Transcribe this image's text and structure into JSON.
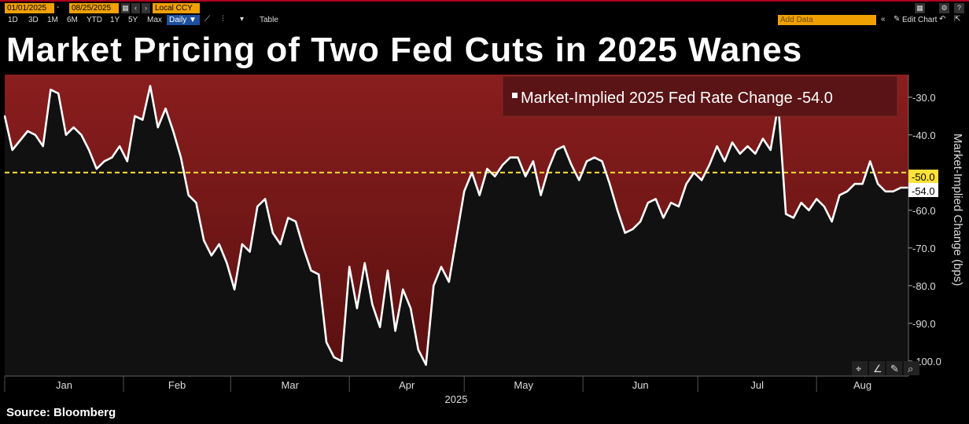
{
  "toolbar": {
    "start_date": "01/01/2025",
    "end_date": "08/25/2025",
    "currency": "Local CCY",
    "periods": [
      "1D",
      "3D",
      "1M",
      "6M",
      "YTD",
      "1Y",
      "5Y",
      "Max"
    ],
    "frequency": "Daily ▼",
    "table_label": "Table",
    "add_data_label": "Add Data",
    "edit_chart_label": "Edit Chart"
  },
  "title": "Market Pricing of Two Fed Cuts in 2025 Wanes",
  "source": "Source: Bloomberg",
  "colors": {
    "line": "#ffffff",
    "fill_top": "#8a1e1e",
    "fill_bottom": "#5a1010",
    "reference": "#ffe23a",
    "background": "#111111"
  },
  "chart_data": {
    "type": "area",
    "ylabel": "Market-Implied Change (bps)",
    "xlabel": "2025",
    "ylim": [
      -104,
      -24
    ],
    "yticks": [
      -30,
      -40,
      -50,
      -60,
      -70,
      -80,
      -90,
      -100
    ],
    "ytick_labels": [
      "-30.0",
      "-40.0",
      "-50.0",
      "-60.0",
      "-70.0",
      "-80.0",
      "-90.0",
      "-100.0"
    ],
    "months": [
      "Jan",
      "Feb",
      "Mar",
      "Apr",
      "May",
      "Jun",
      "Jul",
      "Aug"
    ],
    "reference_line": {
      "value": -50,
      "label": "-50.0"
    },
    "last_value_label": "-54.0",
    "series": [
      {
        "name": "Market-Implied 2025 Fed Rate Change",
        "legend_value": "-54.0",
        "x": [
          "2025-01-01",
          "2025-01-03",
          "2025-01-07",
          "2025-01-09",
          "2025-01-11",
          "2025-01-13",
          "2025-01-15",
          "2025-01-17",
          "2025-01-19",
          "2025-01-21",
          "2025-01-23",
          "2025-01-25",
          "2025-01-27",
          "2025-01-29",
          "2025-01-31",
          "2025-02-02",
          "2025-02-04",
          "2025-02-06",
          "2025-02-08",
          "2025-02-10",
          "2025-02-12",
          "2025-02-14",
          "2025-02-16",
          "2025-02-18",
          "2025-02-20",
          "2025-02-22",
          "2025-02-24",
          "2025-02-26",
          "2025-02-28",
          "2025-03-02",
          "2025-03-04",
          "2025-03-06",
          "2025-03-08",
          "2025-03-10",
          "2025-03-12",
          "2025-03-14",
          "2025-03-16",
          "2025-03-18",
          "2025-03-20",
          "2025-03-22",
          "2025-03-24",
          "2025-03-26",
          "2025-03-28",
          "2025-03-30",
          "2025-04-01",
          "2025-04-03",
          "2025-04-05",
          "2025-04-07",
          "2025-04-09",
          "2025-04-11",
          "2025-04-13",
          "2025-04-15",
          "2025-04-17",
          "2025-04-19",
          "2025-04-21",
          "2025-04-23",
          "2025-04-25",
          "2025-04-27",
          "2025-04-29",
          "2025-05-01",
          "2025-05-03",
          "2025-05-05",
          "2025-05-07",
          "2025-05-09",
          "2025-05-11",
          "2025-05-13",
          "2025-05-15",
          "2025-05-17",
          "2025-05-19",
          "2025-05-21",
          "2025-05-23",
          "2025-05-25",
          "2025-05-27",
          "2025-05-29",
          "2025-05-31",
          "2025-06-02",
          "2025-06-04",
          "2025-06-06",
          "2025-06-08",
          "2025-06-10",
          "2025-06-12",
          "2025-06-14",
          "2025-06-16",
          "2025-06-18",
          "2025-06-20",
          "2025-06-22",
          "2025-06-24",
          "2025-06-26",
          "2025-06-28",
          "2025-06-30",
          "2025-07-02",
          "2025-07-04",
          "2025-07-06",
          "2025-07-08",
          "2025-07-10",
          "2025-07-12",
          "2025-07-14",
          "2025-07-16",
          "2025-07-18",
          "2025-07-20",
          "2025-07-22",
          "2025-07-24",
          "2025-07-26",
          "2025-07-28",
          "2025-07-30",
          "2025-08-01",
          "2025-08-03",
          "2025-08-05",
          "2025-08-07",
          "2025-08-09",
          "2025-08-11",
          "2025-08-13",
          "2025-08-15",
          "2025-08-17",
          "2025-08-19",
          "2025-08-21",
          "2025-08-23",
          "2025-08-25"
        ],
        "values": [
          -35,
          -44,
          -39,
          -40,
          -43,
          -28,
          -29,
          -40,
          -38,
          -40,
          -44,
          -49,
          -47,
          -46,
          -43,
          -47,
          -35,
          -36,
          -27,
          -38,
          -33,
          -39,
          -46,
          -56,
          -58,
          -68,
          -72,
          -69,
          -74,
          -81,
          -69,
          -71,
          -59,
          -57,
          -66,
          -69,
          -62,
          -63,
          -70,
          -76,
          -77,
          -95,
          -99,
          -100,
          -75,
          -86,
          -74,
          -85,
          -91,
          -76,
          -92,
          -81,
          -86,
          -97,
          -101,
          -80,
          -75,
          -79,
          -67,
          -55,
          -50,
          -56,
          -49,
          -51,
          -48,
          -46,
          -46,
          -51,
          -47,
          -56,
          -49,
          -44,
          -43,
          -48,
          -52,
          -47,
          -46,
          -47,
          -53,
          -60,
          -66,
          -65,
          -63,
          -58,
          -57,
          -62,
          -58,
          -59,
          -53,
          -50,
          -52,
          -48,
          -43,
          -47,
          -42,
          -45,
          -43,
          -45,
          -41,
          -44,
          -32,
          -61,
          -62,
          -58,
          -60,
          -57,
          -59,
          -63,
          -56,
          -55,
          -53,
          -53,
          -47,
          -53,
          -55,
          -55,
          -54,
          -54
        ]
      }
    ]
  }
}
